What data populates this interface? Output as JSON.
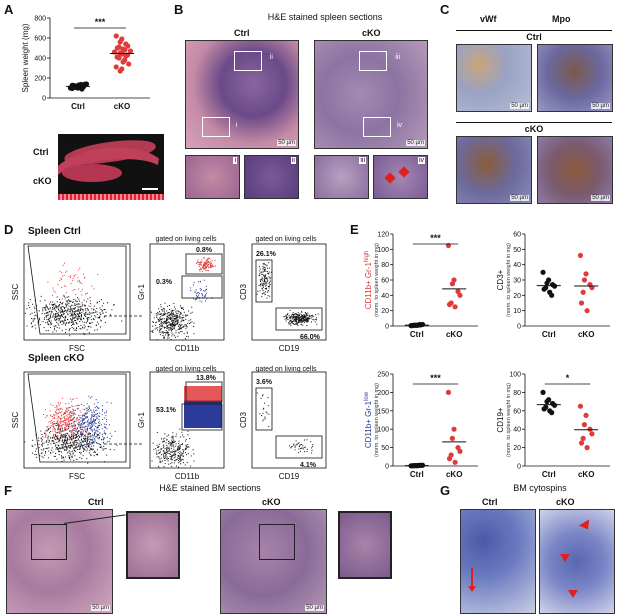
{
  "panels": {
    "a": {
      "label": "A",
      "ylabel": "Spleen weight (mg)",
      "yticks": [
        "0",
        "200",
        "400",
        "600",
        "800"
      ],
      "xcats": [
        "Ctrl",
        "cKO"
      ],
      "sig": "***",
      "photo_rows": [
        "Ctrl",
        "cKO"
      ]
    },
    "b": {
      "label": "B",
      "title": "H&E stained spleen sections",
      "cols": [
        "Ctrl",
        "cKO"
      ],
      "boxes": [
        "i",
        "ii",
        "iii",
        "iv"
      ],
      "scale": "50 µm"
    },
    "c": {
      "label": "C",
      "cols": [
        "vWf",
        "Mpo"
      ],
      "rows": [
        "Ctrl",
        "cKO"
      ],
      "scale": "50 µm"
    },
    "d": {
      "label": "D",
      "row1": "Spleen Ctrl",
      "row2": "Spleen cKO",
      "gate": "gated on living cells",
      "axes": {
        "ssc": "SSC",
        "fsc": "FSC",
        "gr1": "Gr-1",
        "cd11b": "CD11b",
        "cd3": "CD3",
        "cd19": "CD19"
      },
      "ctrl_pct": {
        "gr1_high": "0.8%",
        "gr1_low": "0.3%",
        "cd3": "26.1%",
        "cd19": "66.0%"
      },
      "cko_pct": {
        "gr1_high": "13.8%",
        "gr1_low": "53.1%",
        "cd3": "3.6%",
        "cd19": "4.1%"
      }
    },
    "e": {
      "label": "E",
      "norm": "(norm. to spleen weight in mg)",
      "p1": {
        "ylabel_main": "CD11b+ Gr-1",
        "ylabel_sup": "high",
        "yticks": [
          "0",
          "20",
          "40",
          "60",
          "80",
          "100",
          "120"
        ],
        "sig": "***"
      },
      "p2": {
        "ylabel_main": "CD3+",
        "yticks": [
          "0",
          "10",
          "20",
          "30",
          "40",
          "50",
          "60"
        ]
      },
      "p3": {
        "ylabel_main": "CD11b+ Gr-1",
        "ylabel_sup": "low",
        "yticks": [
          "0",
          "50",
          "100",
          "150",
          "200",
          "250"
        ],
        "sig": "***"
      },
      "p4": {
        "ylabel_main": "CD19+",
        "yticks": [
          "0",
          "20",
          "40",
          "60",
          "80",
          "100"
        ],
        "sig": "*"
      },
      "xcats": [
        "Ctrl",
        "cKO"
      ]
    },
    "f": {
      "label": "F",
      "title": "H&E stained BM sections",
      "cols": [
        "Ctrl",
        "cKO"
      ],
      "scale": "50 µm"
    },
    "g": {
      "label": "G",
      "title": "BM cytospins",
      "cols": [
        "Ctrl",
        "cKO"
      ]
    }
  },
  "colors": {
    "ctrl": "#111111",
    "cko": "#e03b3b",
    "blue": "#2a3b9a",
    "he_pink": "#c78aa6",
    "he_purple": "#5e3d78"
  },
  "chart_data": [
    {
      "type": "scatter",
      "title": "",
      "ylabel": "Spleen weight (mg)",
      "ylim": [
        0,
        800
      ],
      "categories": [
        "Ctrl",
        "cKO"
      ],
      "series": [
        {
          "values": [
            95,
            100,
            105,
            110,
            115,
            120,
            125,
            130,
            135,
            140,
            100,
            108,
            118,
            128,
            90,
            112,
            122,
            132,
            102,
            138,
            126
          ]
        },
        {
          "values": [
            620,
            590,
            560,
            540,
            520,
            510,
            500,
            490,
            480,
            470,
            460,
            450,
            440,
            430,
            420,
            410,
            400,
            380,
            360,
            340,
            310,
            290,
            270
          ]
        }
      ]
    },
    {
      "type": "scatter",
      "ylabel": "CD11b+ Gr-1high",
      "ylim": [
        0,
        120
      ],
      "categories": [
        "Ctrl",
        "cKO"
      ],
      "series": [
        {
          "values": [
            0.5,
            1,
            1,
            1.5,
            2,
            1,
            0.5,
            1,
            2
          ]
        },
        {
          "values": [
            105,
            60,
            55,
            45,
            40,
            30,
            28,
            25
          ]
        }
      ]
    },
    {
      "type": "scatter",
      "ylabel": "CD3+",
      "ylim": [
        0,
        60
      ],
      "categories": [
        "Ctrl",
        "cKO"
      ],
      "series": [
        {
          "values": [
            35,
            30,
            28,
            27,
            26,
            25,
            24,
            22,
            20
          ]
        },
        {
          "values": [
            46,
            34,
            30,
            27,
            25,
            22,
            15,
            10
          ]
        }
      ]
    },
    {
      "type": "scatter",
      "ylabel": "CD11b+ Gr-1low",
      "ylim": [
        0,
        250
      ],
      "categories": [
        "Ctrl",
        "cKO"
      ],
      "series": [
        {
          "values": [
            0.5,
            1,
            1,
            1.5,
            2,
            1,
            0.5,
            1,
            2
          ]
        },
        {
          "values": [
            200,
            100,
            75,
            50,
            40,
            30,
            20,
            10
          ]
        }
      ]
    },
    {
      "type": "scatter",
      "ylabel": "CD19+",
      "ylim": [
        0,
        100
      ],
      "categories": [
        "Ctrl",
        "cKO"
      ],
      "series": [
        {
          "values": [
            80,
            72,
            70,
            68,
            66,
            64,
            62,
            60,
            58
          ]
        },
        {
          "values": [
            65,
            55,
            45,
            40,
            35,
            30,
            25,
            20
          ]
        }
      ]
    }
  ]
}
